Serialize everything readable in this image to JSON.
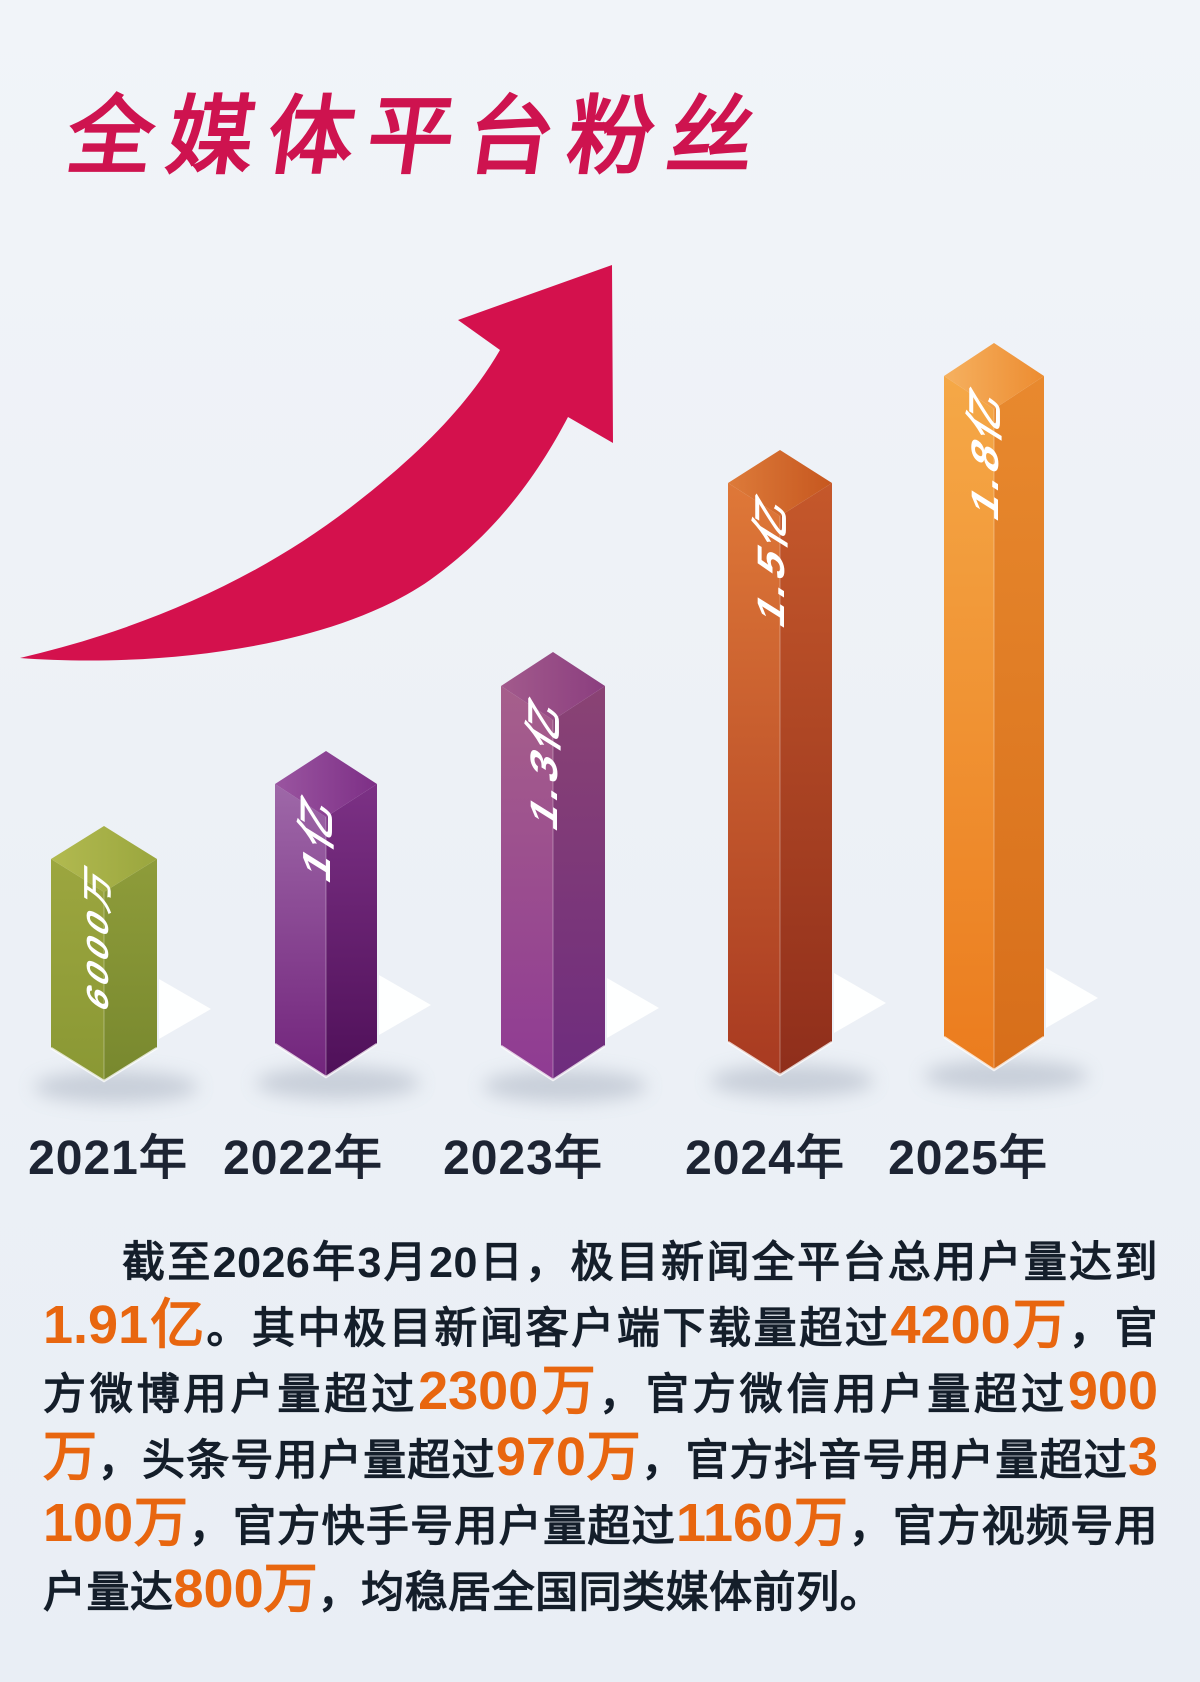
{
  "title": "全媒体平台粉丝",
  "chart_data": {
    "type": "bar",
    "title": "全媒体平台粉丝",
    "categories": [
      "2021年",
      "2022年",
      "2023年",
      "2024年",
      "2025年"
    ],
    "values_yi": [
      0.6,
      1.0,
      1.3,
      1.5,
      1.8
    ],
    "value_labels": [
      "6000万",
      "1亿",
      "1.3亿",
      "1.5亿",
      "1.8亿"
    ],
    "unit": "亿",
    "style": "3d-isometric-columns",
    "annotation": "上升趋势箭头",
    "legend": null,
    "grid": false,
    "label_color": "#ffffff",
    "bar_styles": [
      {
        "top": [
          "#b2ba50",
          "#9aa63e"
        ],
        "left": [
          "#9ca63f",
          "#8a9834"
        ],
        "right": [
          "#8e9c3a",
          "#78882e"
        ]
      },
      {
        "top": [
          "#9a55a0",
          "#7d2f86"
        ],
        "left": [
          "#9e68a8",
          "#72247c"
        ],
        "right": [
          "#7c3185",
          "#4f1059"
        ]
      },
      {
        "top": [
          "#a25a8c",
          "#8b3e7f"
        ],
        "left": [
          "#a65f8b",
          "#8f3b93"
        ],
        "right": [
          "#8a4374",
          "#6e2c7e"
        ]
      },
      {
        "top": [
          "#dd7b3a",
          "#c6571f"
        ],
        "left": [
          "#df7838",
          "#a83a21"
        ],
        "right": [
          "#c5582b",
          "#8f2e1b"
        ]
      },
      {
        "top": [
          "#f6b160",
          "#ec8c31"
        ],
        "left": [
          "#f5a847",
          "#eb7c1e"
        ],
        "right": [
          "#e8892e",
          "#d76e1a"
        ]
      }
    ]
  },
  "paragraph": {
    "segments": [
      {
        "text": "截至2026年3月20日，极目新闻全平台总用户量达到",
        "highlight": false
      },
      {
        "text": "1.91亿",
        "highlight": true
      },
      {
        "text": "。其中极目新闻客户端下载量超过",
        "highlight": false
      },
      {
        "text": "4200万",
        "highlight": true
      },
      {
        "text": "，官方微博用户量超过",
        "highlight": false
      },
      {
        "text": "2300万",
        "highlight": true
      },
      {
        "text": "，官方微信用户量超过",
        "highlight": false
      },
      {
        "text": "900万",
        "highlight": true
      },
      {
        "text": "，头条号用户量超过",
        "highlight": false
      },
      {
        "text": "970万",
        "highlight": true
      },
      {
        "text": "，官方抖音号用户量超过",
        "highlight": false
      },
      {
        "text": "3100万",
        "highlight": true
      },
      {
        "text": "，官方快手号用户量超过",
        "highlight": false
      },
      {
        "text": "1160万",
        "highlight": true
      },
      {
        "text": "，官方视频号用户量达",
        "highlight": false
      },
      {
        "text": "800万",
        "highlight": true
      },
      {
        "text": "，均稳居全国同类媒体前列。",
        "highlight": false
      }
    ]
  },
  "colors": {
    "background": "#edf1f6",
    "title": "#ce134f",
    "arrow": "#d4114d",
    "year_label": "#1d2433",
    "body_text": "#141e2a",
    "highlight_number": "#e8660f"
  }
}
